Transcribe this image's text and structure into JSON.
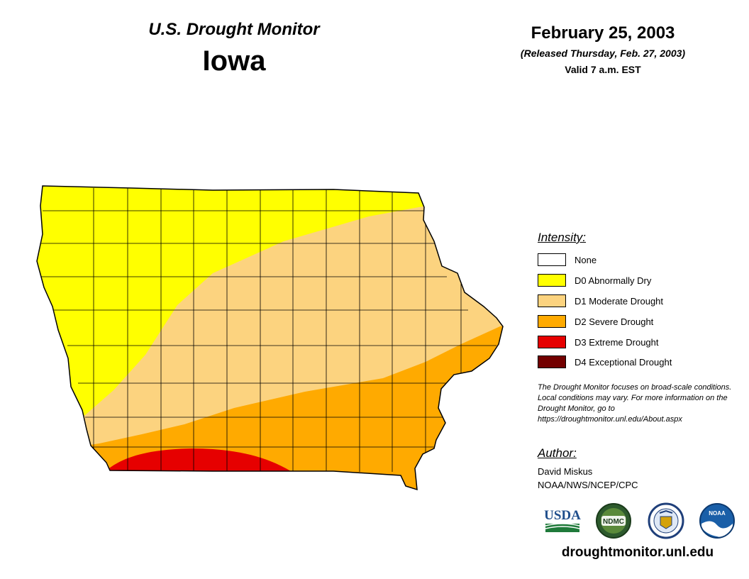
{
  "header": {
    "product": "U.S. Drought Monitor",
    "state": "Iowa",
    "date": "February 25, 2003",
    "released": "(Released Thursday, Feb. 27, 2003)",
    "valid": "Valid 7 a.m. EST"
  },
  "legend": {
    "title": "Intensity:",
    "items": [
      {
        "label": "None",
        "color": "#FFFFFF"
      },
      {
        "label": "D0 Abnormally Dry",
        "color": "#FFFF00"
      },
      {
        "label": "D1 Moderate Drought",
        "color": "#FCD37F"
      },
      {
        "label": "D2 Severe Drought",
        "color": "#FFAA00"
      },
      {
        "label": "D3 Extreme Drought",
        "color": "#E60000"
      },
      {
        "label": "D4 Exceptional Drought",
        "color": "#730000"
      }
    ]
  },
  "note": "The Drought Monitor focuses on broad-scale conditions. Local conditions may vary. For more information on the Drought Monitor, go to https://droughtmonitor.unl.edu/About.aspx",
  "author": {
    "title": "Author:",
    "name": "David Miskus",
    "org": "NOAA/NWS/NCEP/CPC"
  },
  "logos": {
    "usda": "USDA",
    "ndmc": "NDMC",
    "noaa": "NOAA"
  },
  "site": "droughtmonitor.unl.edu"
}
